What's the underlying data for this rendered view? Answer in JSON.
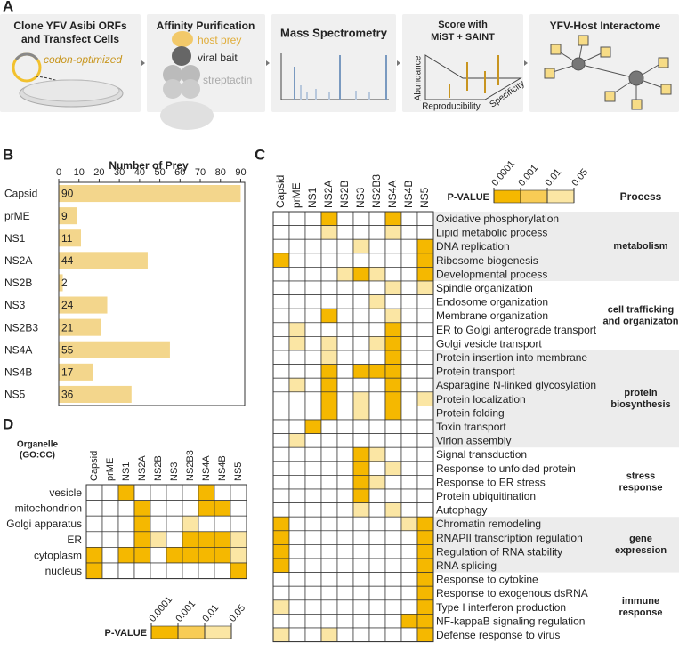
{
  "panel_a": {
    "label": "A",
    "steps": [
      {
        "title": [
          "Clone YFV Asibi ORFs",
          "and Transfect Cells"
        ],
        "notes": [
          "codon-optimized"
        ]
      },
      {
        "title": [
          "Affinity Purification"
        ],
        "notes": [
          "host prey",
          "viral bait",
          "streptactin"
        ]
      },
      {
        "title": [
          "Mass Spectrometry"
        ]
      },
      {
        "title": [
          "Score with",
          "MiST + SAINT"
        ],
        "notes": [
          "Abundance",
          "Reproducibility",
          "Specificity"
        ]
      },
      {
        "title": [
          "YFV-Host Interactome"
        ]
      }
    ]
  },
  "chart_data": {
    "type": "bar",
    "label": "B",
    "title": "Number of Prey",
    "categories": [
      "Capsid",
      "prME",
      "NS1",
      "NS2A",
      "NS2B",
      "NS3",
      "NS2B3",
      "NS4A",
      "NS4B",
      "NS5"
    ],
    "values": [
      90,
      9,
      11,
      44,
      2,
      24,
      21,
      55,
      17,
      36
    ],
    "color": "#f3d68c",
    "xlim": [
      0,
      92
    ],
    "xticks": [
      0,
      10,
      20,
      30,
      40,
      50,
      60,
      70,
      80,
      90
    ]
  },
  "heatmap_c": {
    "label": "C",
    "group_header": "Process",
    "columns": [
      "Capsid",
      "prME",
      "NS1",
      "NS2A",
      "NS2B",
      "NS3",
      "NS2B3",
      "NS4A",
      "NS4B",
      "NS5"
    ],
    "rows": [
      "Oxidative phosphorylation",
      "Lipid metabolic process",
      "DNA replication",
      "Ribosome biogenesis",
      "Developmental process",
      "Spindle organization",
      "Endosome organization",
      "Membrane organization",
      "ER to Golgi anterograde transport",
      "Golgi vesicle transport",
      "Protein insertion into membrane",
      "Protein transport",
      "Asparagine N-linked glycosylation",
      "Protein localization",
      "Protein folding",
      "Toxin transport",
      "Virion assembly",
      "Signal transduction",
      "Response to unfolded protein",
      "Response to ER stress",
      "Protein ubiquitination",
      "Autophagy",
      "Chromatin remodeling",
      "RNAPII transcription regulation",
      "Regulation of RNA stability",
      "RNA splicing",
      "Response to cytokine",
      "Response to exogenous dsRNA",
      "Type I interferon production",
      "NF-kappaB signaling regulation",
      "Defense response to virus"
    ],
    "cells": [
      [
        0,
        0,
        0,
        1,
        0,
        0,
        0,
        1,
        0,
        0
      ],
      [
        0,
        0,
        0,
        3,
        0,
        0,
        0,
        3,
        0,
        0
      ],
      [
        0,
        0,
        0,
        0,
        0,
        3,
        0,
        0,
        0,
        1
      ],
      [
        1,
        0,
        0,
        0,
        0,
        0,
        0,
        0,
        0,
        1
      ],
      [
        0,
        0,
        0,
        0,
        3,
        1,
        3,
        0,
        0,
        1
      ],
      [
        0,
        0,
        0,
        0,
        0,
        0,
        0,
        3,
        0,
        3
      ],
      [
        0,
        0,
        0,
        0,
        0,
        0,
        3,
        0,
        0,
        0
      ],
      [
        0,
        0,
        0,
        1,
        0,
        0,
        0,
        3,
        0,
        0
      ],
      [
        0,
        3,
        0,
        0,
        0,
        0,
        0,
        1,
        0,
        0
      ],
      [
        0,
        3,
        0,
        3,
        0,
        0,
        3,
        1,
        0,
        0
      ],
      [
        0,
        0,
        0,
        3,
        0,
        0,
        0,
        1,
        0,
        0
      ],
      [
        0,
        0,
        0,
        1,
        0,
        1,
        1,
        1,
        0,
        0
      ],
      [
        0,
        3,
        0,
        1,
        0,
        0,
        0,
        1,
        0,
        0
      ],
      [
        0,
        0,
        0,
        1,
        0,
        3,
        0,
        1,
        0,
        3
      ],
      [
        0,
        0,
        0,
        1,
        0,
        3,
        0,
        1,
        0,
        0
      ],
      [
        0,
        0,
        1,
        0,
        0,
        0,
        0,
        0,
        0,
        0
      ],
      [
        0,
        3,
        0,
        0,
        0,
        0,
        0,
        0,
        0,
        0
      ],
      [
        0,
        0,
        0,
        0,
        0,
        1,
        3,
        0,
        0,
        0
      ],
      [
        0,
        0,
        0,
        0,
        0,
        1,
        0,
        3,
        0,
        0
      ],
      [
        0,
        0,
        0,
        0,
        0,
        1,
        3,
        0,
        0,
        0
      ],
      [
        0,
        0,
        0,
        0,
        0,
        1,
        0,
        0,
        0,
        0
      ],
      [
        0,
        0,
        0,
        0,
        0,
        3,
        0,
        3,
        0,
        0
      ],
      [
        1,
        0,
        0,
        0,
        0,
        0,
        0,
        0,
        3,
        1
      ],
      [
        1,
        0,
        0,
        0,
        0,
        0,
        0,
        0,
        0,
        1
      ],
      [
        1,
        0,
        0,
        0,
        0,
        0,
        0,
        0,
        0,
        1
      ],
      [
        1,
        0,
        0,
        0,
        0,
        0,
        0,
        0,
        0,
        1
      ],
      [
        0,
        0,
        0,
        0,
        0,
        0,
        0,
        0,
        0,
        1
      ],
      [
        0,
        0,
        0,
        0,
        0,
        0,
        0,
        0,
        0,
        1
      ],
      [
        3,
        0,
        0,
        0,
        0,
        0,
        0,
        0,
        0,
        1
      ],
      [
        0,
        0,
        0,
        0,
        0,
        0,
        0,
        0,
        1,
        1
      ],
      [
        3,
        0,
        0,
        3,
        0,
        0,
        0,
        0,
        0,
        1
      ]
    ],
    "groups": [
      {
        "lines": [
          "metabolism"
        ],
        "rows": [
          0,
          4
        ]
      },
      {
        "lines": [
          "cell trafficking",
          "and organizaton"
        ],
        "rows": [
          5,
          9
        ]
      },
      {
        "lines": [
          "protein",
          "biosynthesis"
        ],
        "rows": [
          10,
          16
        ]
      },
      {
        "lines": [
          "stress",
          "response"
        ],
        "rows": [
          17,
          21
        ]
      },
      {
        "lines": [
          "gene",
          "expression"
        ],
        "rows": [
          22,
          25
        ]
      },
      {
        "lines": [
          "immune",
          "response"
        ],
        "rows": [
          26,
          30
        ]
      }
    ],
    "legend": {
      "title": "P-VALUE",
      "ticks": [
        0.0001,
        0.001,
        0.01,
        0.05
      ],
      "colors": [
        "#f5b800",
        "#f8cc55",
        "#fbe6a4"
      ]
    }
  },
  "heatmap_d": {
    "label": "D",
    "title": [
      "Organelle",
      "(GO:CC)"
    ],
    "columns": [
      "Capsid",
      "prME",
      "NS1",
      "NS2A",
      "NS2B",
      "NS3",
      "NS2B3",
      "NS4A",
      "NS4B",
      "NS5"
    ],
    "rows": [
      "vesicle",
      "mitochondrion",
      "Golgi apparatus",
      "ER",
      "cytoplasm",
      "nucleus"
    ],
    "cells": [
      [
        0,
        0,
        1,
        0,
        0,
        0,
        0,
        1,
        0,
        0
      ],
      [
        0,
        0,
        0,
        1,
        0,
        0,
        0,
        1,
        1,
        0
      ],
      [
        0,
        0,
        0,
        1,
        0,
        0,
        3,
        0,
        0,
        0
      ],
      [
        0,
        0,
        0,
        1,
        3,
        0,
        1,
        1,
        1,
        3
      ],
      [
        1,
        0,
        1,
        1,
        0,
        1,
        1,
        1,
        1,
        3
      ],
      [
        1,
        0,
        0,
        0,
        0,
        0,
        0,
        0,
        0,
        1
      ]
    ],
    "legend": {
      "title": "P-VALUE",
      "ticks": [
        0.0001,
        0.001,
        0.01,
        0.05
      ],
      "colors": [
        "#f5b800",
        "#f8cc55",
        "#fbe6a4"
      ]
    }
  }
}
